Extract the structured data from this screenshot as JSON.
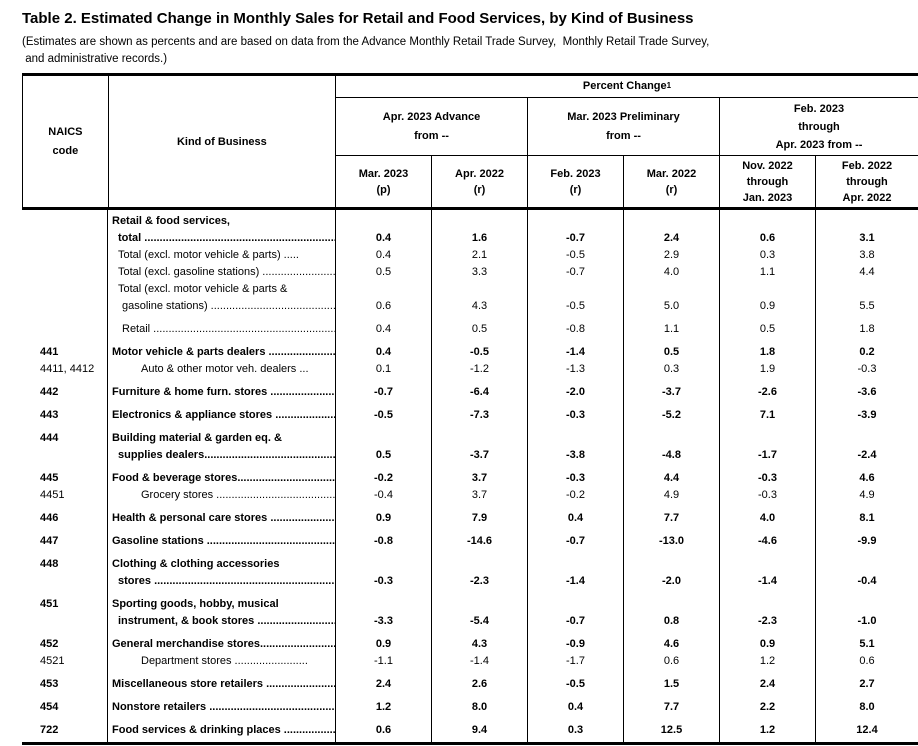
{
  "title": "Table 2.  Estimated Change in Monthly Sales for Retail and Food Services, by Kind of Business",
  "subtitle": {
    "line1": "(Estimates are shown as percents and are based on data from the Advance Monthly Retail Trade Survey,  Monthly Retail Trade Survey,",
    "line2": " and administrative records.)"
  },
  "header": {
    "naics": {
      "line1": "NAICS",
      "line2": "code"
    },
    "kind_of_business": "Kind of Business",
    "percent_change": "Percent Change",
    "percent_change_footnote": "1",
    "groups": [
      {
        "lines": [
          "Apr. 2023 Advance",
          "from --"
        ]
      },
      {
        "lines": [
          "Mar. 2023 Preliminary",
          "from --"
        ]
      },
      {
        "lines": [
          "Feb. 2023",
          "through",
          "Apr. 2023 from --"
        ]
      }
    ],
    "columns": [
      {
        "lines": [
          "Mar. 2023",
          "(p)"
        ]
      },
      {
        "lines": [
          "Apr. 2022",
          "(r)"
        ]
      },
      {
        "lines": [
          "Feb. 2023",
          "(r)"
        ]
      },
      {
        "lines": [
          "Mar. 2022",
          "(r)"
        ]
      },
      {
        "lines": [
          "Nov. 2022",
          "through",
          "Jan. 2023"
        ]
      },
      {
        "lines": [
          "Feb. 2022",
          "through",
          "Apr. 2022"
        ]
      }
    ]
  },
  "rows": [
    {
      "code": "",
      "pre": "Retail & food services,",
      "label": "total ",
      "dots": 70,
      "bold": true,
      "indent": 1,
      "gap": false,
      "values": [
        "0.4",
        "1.6",
        "-0.7",
        "2.4",
        "0.6",
        "3.1"
      ]
    },
    {
      "code": "",
      "pre": null,
      "label": "Total (excl. motor vehicle & parts) ",
      "dots": 5,
      "bold": false,
      "indent": 1,
      "gap": false,
      "values": [
        "0.4",
        "2.1",
        "-0.5",
        "2.9",
        "0.3",
        "3.8"
      ]
    },
    {
      "code": "",
      "pre": null,
      "label": "Total (excl. gasoline stations) ",
      "dots": 70,
      "bold": false,
      "indent": 1,
      "gap": false,
      "values": [
        "0.5",
        "3.3",
        "-0.7",
        "4.0",
        "1.1",
        "4.4"
      ]
    },
    {
      "code": "",
      "pre": "Total (excl. motor vehicle & parts &",
      "label": "gasoline stations) ",
      "dots": 70,
      "bold": false,
      "indent": 2,
      "gap": false,
      "pre_indent": 1,
      "values": [
        "0.6",
        "4.3",
        "-0.5",
        "5.0",
        "0.9",
        "5.5"
      ]
    },
    {
      "code": "",
      "pre": null,
      "label": "Retail ",
      "dots": 70,
      "bold": false,
      "indent": 2,
      "gap": true,
      "values": [
        "0.4",
        "0.5",
        "-0.8",
        "1.1",
        "0.5",
        "1.8"
      ]
    },
    {
      "code": "441",
      "pre": null,
      "label": "Motor vehicle & parts dealers ",
      "dots": 70,
      "bold": true,
      "indent": 0,
      "gap": true,
      "values": [
        "0.4",
        "-0.5",
        "-1.4",
        "0.5",
        "1.8",
        "0.2"
      ]
    },
    {
      "code": "4411, 4412",
      "pre": null,
      "label": "Auto & other motor veh. dealers ",
      "dots": 3,
      "bold": false,
      "indent": 3,
      "gap": false,
      "values": [
        "0.1",
        "-1.2",
        "-1.3",
        "0.3",
        "1.9",
        "-0.3"
      ]
    },
    {
      "code": "442",
      "pre": null,
      "label": "Furniture & home furn. stores ",
      "dots": 70,
      "bold": true,
      "indent": 0,
      "gap": true,
      "values": [
        "-0.7",
        "-6.4",
        "-2.0",
        "-3.7",
        "-2.6",
        "-3.6"
      ]
    },
    {
      "code": "443",
      "pre": null,
      "label": "Electronics & appliance stores ",
      "dots": 70,
      "bold": true,
      "indent": 0,
      "gap": true,
      "values": [
        "-0.5",
        "-7.3",
        "-0.3",
        "-5.2",
        "7.1",
        "-3.9"
      ]
    },
    {
      "code": "444",
      "pre": "Building material & garden eq. &",
      "label": "supplies dealers",
      "dots": 70,
      "bold": true,
      "indent": 1,
      "gap": true,
      "pre_indent": 0,
      "values": [
        "0.5",
        "-3.7",
        "-3.8",
        "-4.8",
        "-1.7",
        "-2.4"
      ]
    },
    {
      "code": "445",
      "pre": null,
      "label": "Food & beverage stores",
      "dots": 70,
      "bold": true,
      "indent": 0,
      "gap": true,
      "values": [
        "-0.2",
        "3.7",
        "-0.3",
        "4.4",
        "-0.3",
        "4.6"
      ]
    },
    {
      "code": "4451",
      "pre": null,
      "label": "Grocery stores ",
      "dots": 70,
      "bold": false,
      "indent": 3,
      "gap": false,
      "values": [
        "-0.4",
        "3.7",
        "-0.2",
        "4.9",
        "-0.3",
        "4.9"
      ]
    },
    {
      "code": "446",
      "pre": null,
      "label": "Health & personal care stores ",
      "dots": 70,
      "bold": true,
      "indent": 0,
      "gap": true,
      "values": [
        "0.9",
        "7.9",
        "0.4",
        "7.7",
        "4.0",
        "8.1"
      ]
    },
    {
      "code": "447",
      "pre": null,
      "label": "Gasoline stations ",
      "dots": 70,
      "bold": true,
      "indent": 0,
      "gap": true,
      "values": [
        "-0.8",
        "-14.6",
        "-0.7",
        "-13.0",
        "-4.6",
        "-9.9"
      ]
    },
    {
      "code": "448",
      "pre": "Clothing & clothing accessories",
      "label": "stores ",
      "dots": 70,
      "bold": true,
      "indent": 1,
      "gap": true,
      "pre_indent": 0,
      "values": [
        "-0.3",
        "-2.3",
        "-1.4",
        "-2.0",
        "-1.4",
        "-0.4"
      ]
    },
    {
      "code": "451",
      "pre": "Sporting goods, hobby, musical",
      "label": "instrument, & book stores ",
      "dots": 70,
      "bold": true,
      "indent": 1,
      "gap": true,
      "pre_indent": 0,
      "values": [
        "-3.3",
        "-5.4",
        "-0.7",
        "0.8",
        "-2.3",
        "-1.0"
      ]
    },
    {
      "code": "452",
      "pre": null,
      "label": "General merchandise stores",
      "dots": 70,
      "bold": true,
      "indent": 0,
      "gap": true,
      "values": [
        "0.9",
        "4.3",
        "-0.9",
        "4.6",
        "0.9",
        "5.1"
      ]
    },
    {
      "code": "4521",
      "pre": null,
      "label": "Department stores ",
      "dots": 24,
      "bold": false,
      "indent": 3,
      "gap": false,
      "values": [
        "-1.1",
        "-1.4",
        "-1.7",
        "0.6",
        "1.2",
        "0.6"
      ]
    },
    {
      "code": "453",
      "pre": null,
      "label": "Miscellaneous store retailers ",
      "dots": 70,
      "bold": true,
      "indent": 0,
      "gap": true,
      "values": [
        "2.4",
        "2.6",
        "-0.5",
        "1.5",
        "2.4",
        "2.7"
      ]
    },
    {
      "code": "454",
      "pre": null,
      "label": "Nonstore retailers ",
      "dots": 70,
      "bold": true,
      "indent": 0,
      "gap": true,
      "values": [
        "1.2",
        "8.0",
        "0.4",
        "7.7",
        "2.2",
        "8.0"
      ]
    },
    {
      "code": "722",
      "pre": null,
      "label": "Food services & drinking places ",
      "dots": 70,
      "bold": true,
      "indent": 0,
      "gap": true,
      "values": [
        "0.6",
        "9.4",
        "0.3",
        "12.5",
        "1.2",
        "12.4"
      ]
    }
  ]
}
